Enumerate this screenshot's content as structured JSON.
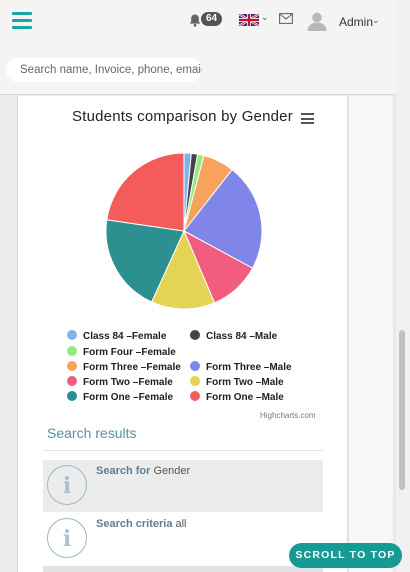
{
  "header": {
    "notification_count": "64",
    "user_name": "Admin",
    "search_placeholder": "Search name, Invoice, phone, email"
  },
  "chart_data": {
    "type": "pie",
    "title": "Students comparison by Gender",
    "credits": "Highcharts.com",
    "series": [
      {
        "name": "Class 84 –Female",
        "value": 1.5,
        "color": "#7cb5ec"
      },
      {
        "name": "Class 84 –Male",
        "value": 1.3,
        "color": "#434348"
      },
      {
        "name": "Form Four –Female",
        "value": 1.3,
        "color": "#90ed7d"
      },
      {
        "name": "Form Three –Female",
        "value": 6.5,
        "color": "#f7a35c"
      },
      {
        "name": "Form Three –Male",
        "value": 22.3,
        "color": "#8085e9"
      },
      {
        "name": "Form Two –Female",
        "value": 10.7,
        "color": "#f15c80"
      },
      {
        "name": "Form Two –Male",
        "value": 13.2,
        "color": "#e4d354"
      },
      {
        "name": "Form One –Female",
        "value": 20.5,
        "color": "#2b908f"
      },
      {
        "name": "Form One –Male",
        "value": 22.7,
        "color": "#f45b5b"
      }
    ]
  },
  "results": {
    "title": "Search results",
    "items": [
      {
        "label": "Search for",
        "value": "Gender"
      },
      {
        "label": "Search criteria",
        "value": "all"
      }
    ]
  },
  "scroll_to_top_label": "SCROLL TO TOP",
  "colors": {
    "accent": "#159a96",
    "results_title": "#5a8ea8"
  }
}
